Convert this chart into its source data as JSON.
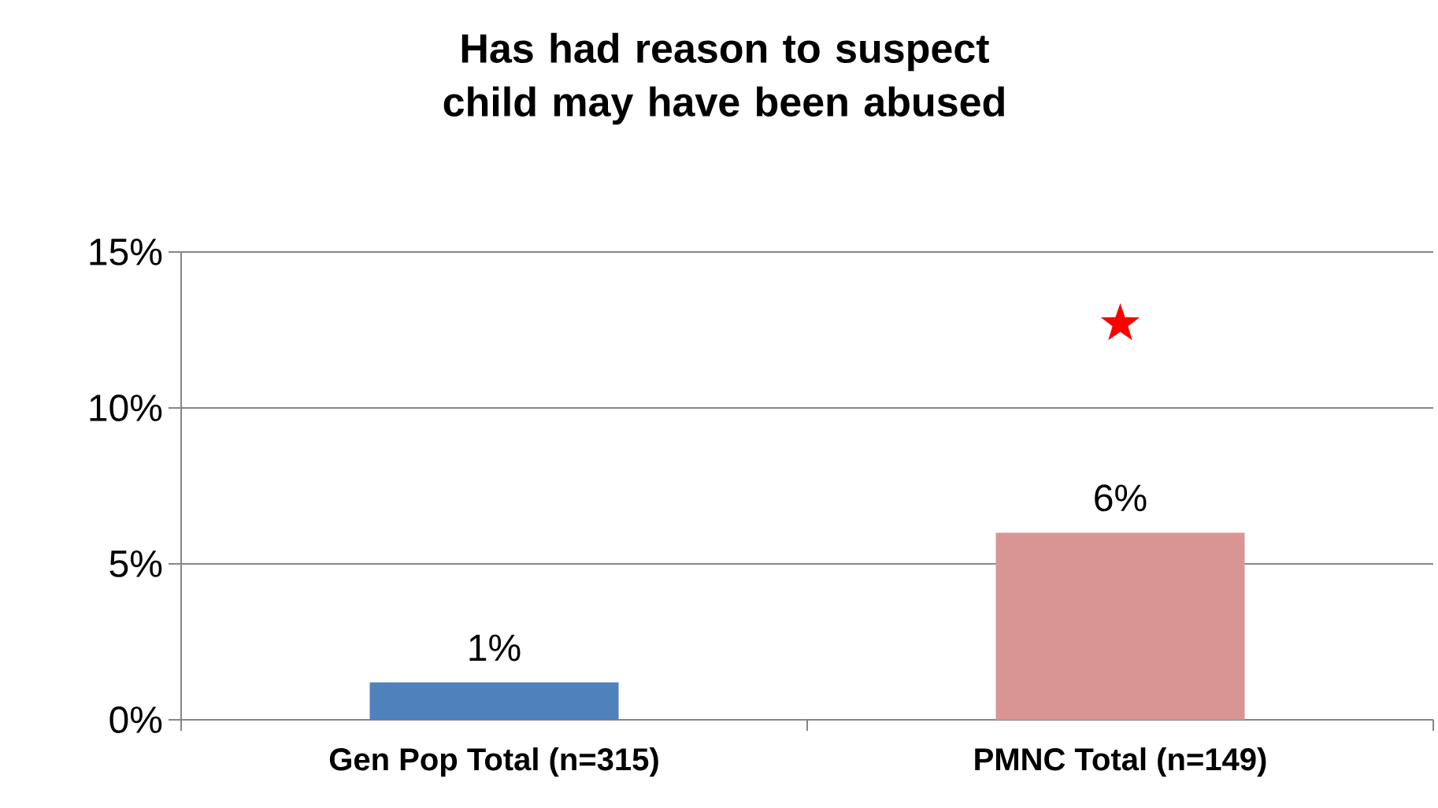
{
  "chart_data": {
    "type": "bar",
    "title": "Has had reason to suspect child may have been abused",
    "categories": [
      "Gen Pop Total (n=315)",
      "PMNC Total (n=149)"
    ],
    "series": [
      {
        "values": [
          1.2,
          6.0
        ],
        "colors": [
          "#4f81bd",
          "#d99594"
        ],
        "value_labels": [
          "1%",
          "6%"
        ]
      },
      {
        "type": "scatter",
        "values": [
          null,
          12.7
        ],
        "color": "#ff0000",
        "marker": "star"
      }
    ],
    "ylim": [
      0,
      15
    ],
    "yticks": [
      {
        "value": 0,
        "label": "0%"
      },
      {
        "value": 5,
        "label": "5%"
      },
      {
        "value": 10,
        "label": "10%"
      },
      {
        "value": 15,
        "label": "15%"
      }
    ],
    "grid": "y"
  }
}
